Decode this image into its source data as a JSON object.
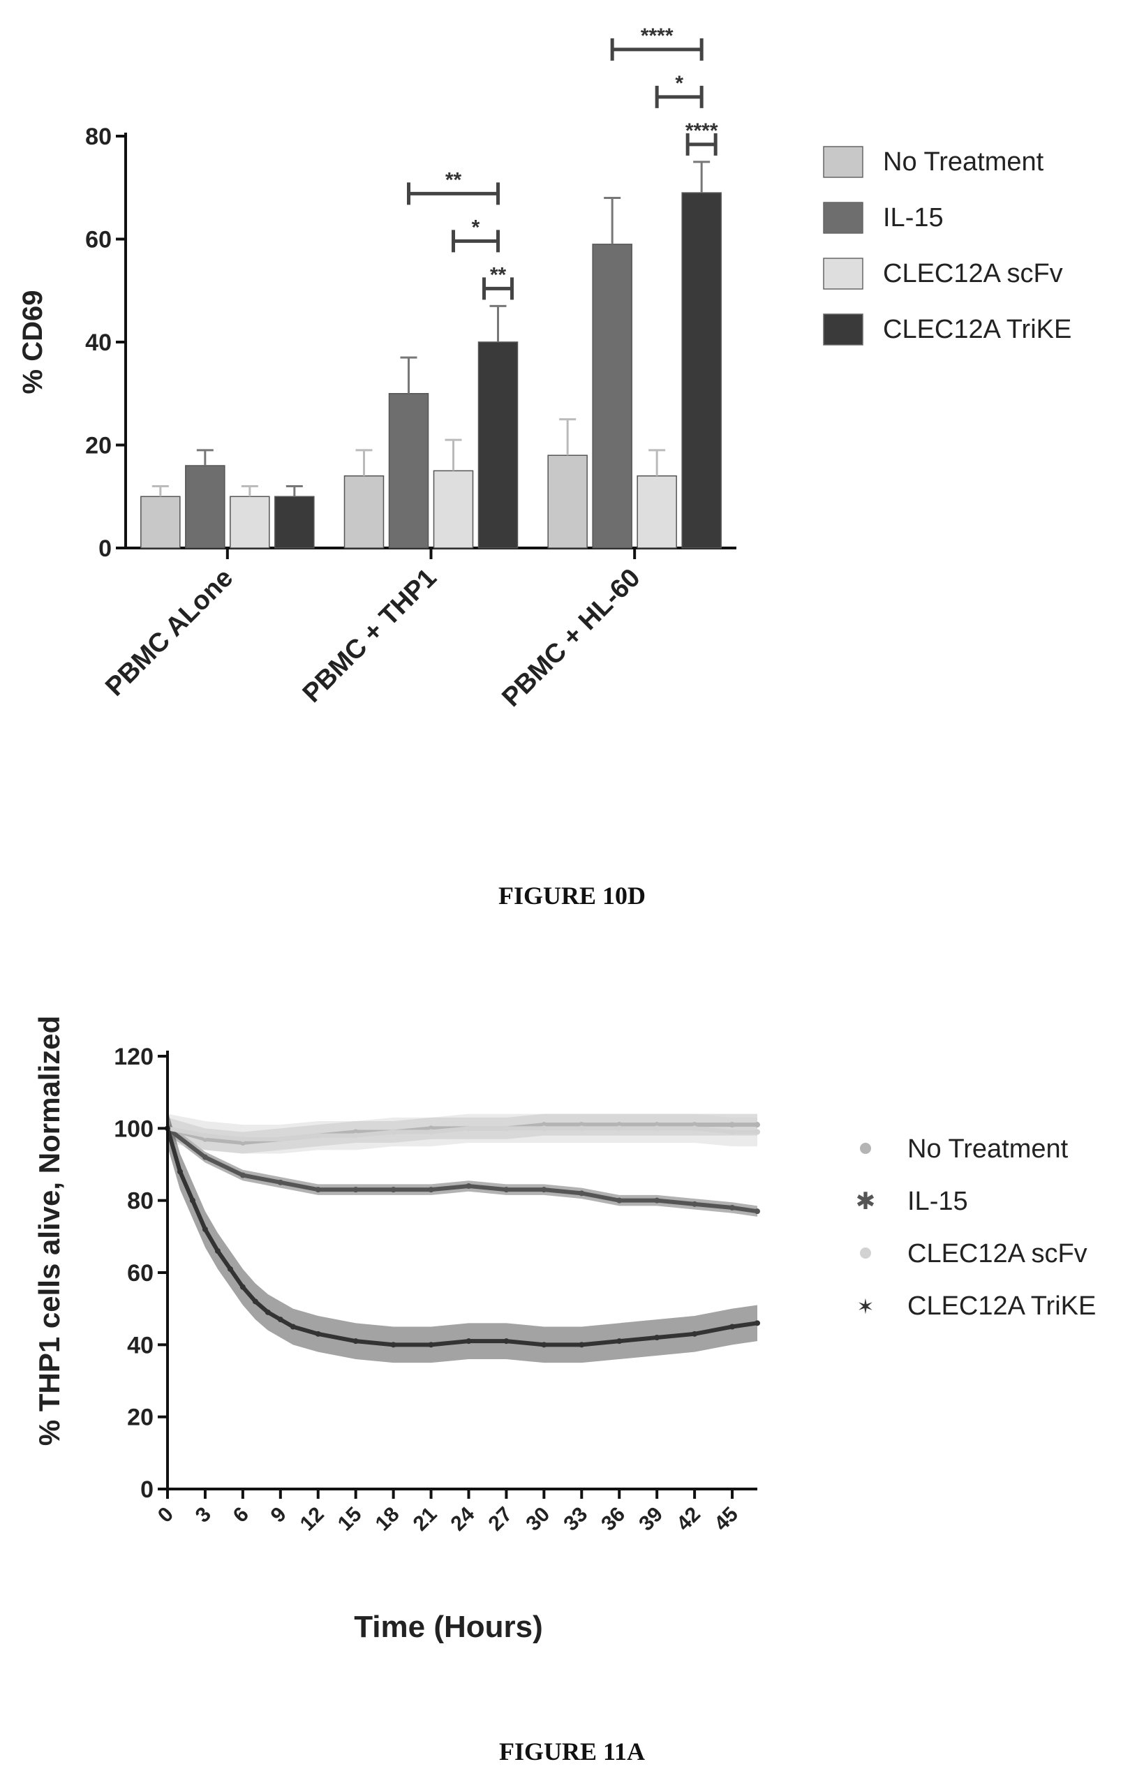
{
  "figures": [
    {
      "caption": "FIGURE 10D"
    },
    {
      "caption": "FIGURE 11A"
    }
  ],
  "chart_data": [
    {
      "type": "bar",
      "ylabel": "% CD69",
      "xlabel": "",
      "ylim": [
        0,
        80
      ],
      "yticks": [
        "0",
        "20",
        "40",
        "60",
        "80"
      ],
      "categories": [
        "PBMC ALone",
        "PBMC + THP1",
        "PBMC + HL-60"
      ],
      "legend_position": "right",
      "series": [
        {
          "name": "No Treatment",
          "values": [
            10,
            14,
            18
          ],
          "errors": [
            2,
            5,
            7
          ],
          "color": "#c8c8c8"
        },
        {
          "name": "IL-15",
          "values": [
            16,
            30,
            59
          ],
          "errors": [
            3,
            7,
            9
          ],
          "color": "#6e6e6e"
        },
        {
          "name": "CLEC12A scFv",
          "values": [
            10,
            15,
            14
          ],
          "errors": [
            2,
            6,
            5
          ],
          "color": "#dedede"
        },
        {
          "name": "CLEC12A TriKE",
          "values": [
            10,
            40,
            69
          ],
          "errors": [
            2,
            7,
            6
          ],
          "color": "#3a3a3a"
        }
      ],
      "significance": [
        {
          "group": "PBMC + THP1",
          "label": "**",
          "from": "IL-15",
          "to": "CLEC12A TriKE"
        },
        {
          "group": "PBMC + THP1",
          "label": "*",
          "from": "CLEC12A scFv",
          "to": "CLEC12A TriKE"
        },
        {
          "group": "PBMC + THP1",
          "label": "**",
          "from": "CLEC12A TriKE",
          "to": "CLEC12A TriKE"
        },
        {
          "group": "PBMC + HL-60",
          "label": "****",
          "from": "IL-15",
          "to": "CLEC12A TriKE"
        },
        {
          "group": "PBMC + HL-60",
          "label": "*",
          "from": "CLEC12A scFv",
          "to": "CLEC12A TriKE"
        },
        {
          "group": "PBMC + HL-60",
          "label": "****",
          "from": "CLEC12A TriKE",
          "to": "CLEC12A TriKE"
        }
      ]
    },
    {
      "type": "line",
      "ylabel": "% THP1 cells alive, Normalized",
      "xlabel": "Time (Hours)",
      "ylim": [
        0,
        120
      ],
      "xlim": [
        0,
        47
      ],
      "yticks": [
        "0",
        "20",
        "40",
        "60",
        "80",
        "100",
        "120"
      ],
      "xticks": [
        "0",
        "3",
        "6",
        "9",
        "12",
        "15",
        "18",
        "21",
        "24",
        "27",
        "30",
        "33",
        "36",
        "39",
        "42",
        "45"
      ],
      "legend_position": "right",
      "series": [
        {
          "name": "No Treatment",
          "marker": "dot",
          "color": "#b4b4b4",
          "x": [
            0,
            3,
            6,
            9,
            12,
            15,
            18,
            21,
            24,
            27,
            30,
            33,
            36,
            39,
            42,
            45,
            47
          ],
          "y": [
            100,
            97,
            96,
            97,
            98,
            99,
            99,
            100,
            100,
            100,
            101,
            101,
            101,
            101,
            101,
            101,
            101
          ],
          "err": 3
        },
        {
          "name": "IL-15",
          "marker": "cross",
          "color": "#555555",
          "x": [
            0,
            3,
            6,
            9,
            12,
            15,
            18,
            21,
            24,
            27,
            30,
            33,
            36,
            39,
            42,
            45,
            47
          ],
          "y": [
            100,
            92,
            87,
            85,
            83,
            83,
            83,
            83,
            84,
            83,
            83,
            82,
            80,
            80,
            79,
            78,
            77
          ],
          "err": 1.5
        },
        {
          "name": "CLEC12A scFv",
          "marker": "dot",
          "color": "#d2d2d2",
          "x": [
            0,
            3,
            6,
            9,
            12,
            15,
            18,
            21,
            24,
            27,
            30,
            33,
            36,
            39,
            42,
            45,
            47
          ],
          "y": [
            100,
            98,
            97,
            97,
            98,
            98,
            99,
            99,
            100,
            100,
            100,
            100,
            100,
            100,
            100,
            99,
            99
          ],
          "err": 4
        },
        {
          "name": "CLEC12A TriKE",
          "marker": "star",
          "color": "#333333",
          "x": [
            0,
            1,
            2,
            3,
            4,
            5,
            6,
            7,
            8,
            9,
            10,
            12,
            15,
            18,
            21,
            24,
            27,
            30,
            33,
            36,
            39,
            42,
            45,
            47
          ],
          "y": [
            100,
            88,
            80,
            72,
            66,
            61,
            56,
            52,
            49,
            47,
            45,
            43,
            41,
            40,
            40,
            41,
            41,
            40,
            40,
            41,
            42,
            43,
            45,
            46
          ],
          "err": 5
        }
      ]
    }
  ]
}
